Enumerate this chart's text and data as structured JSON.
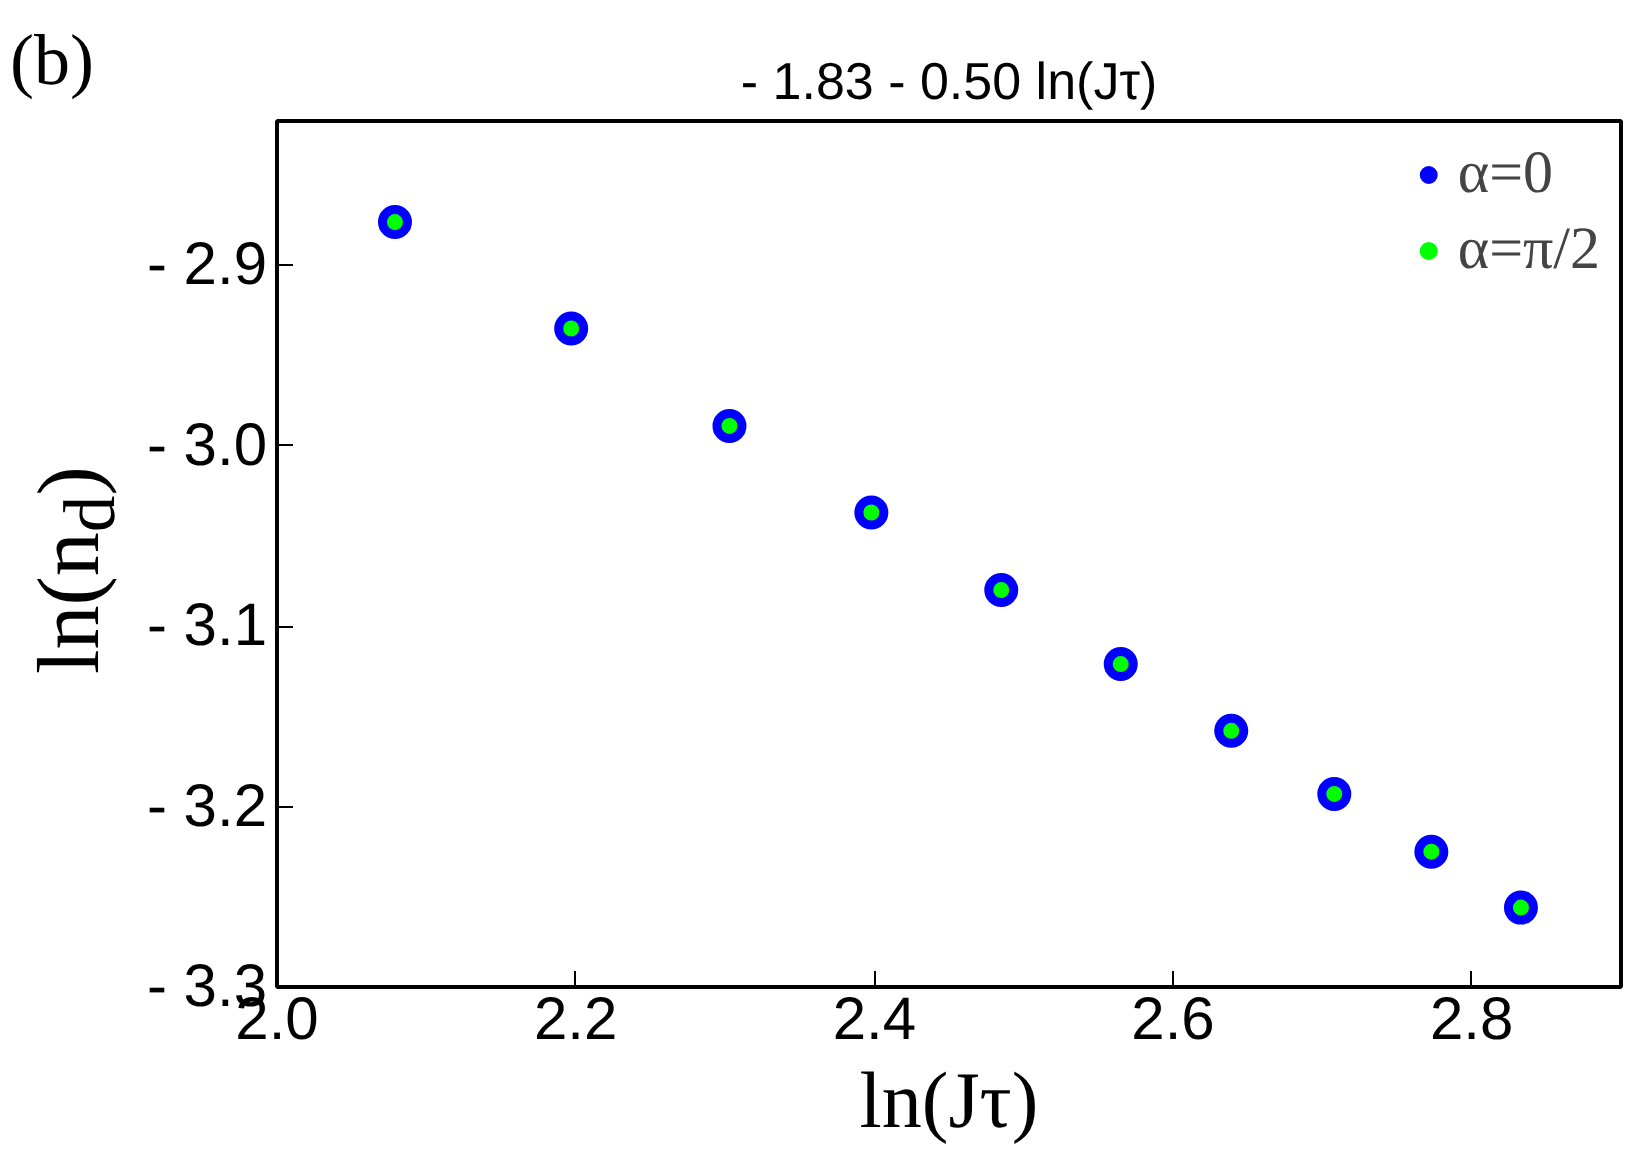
{
  "chart_data": {
    "type": "scatter",
    "title": "- 1.83 - 0.50 ln(Jτ)",
    "xlabel": "ln(Jτ)",
    "ylabel": "ln(n$_{d}$)",
    "annotations": [
      "(b)"
    ],
    "x": [
      2.079,
      2.197,
      2.303,
      2.398,
      2.485,
      2.565,
      2.639,
      2.708,
      2.773,
      2.833
    ],
    "series": [
      {
        "name": "α=0",
        "color": "#0000ff",
        "values": [
          -2.876,
          -2.935,
          -2.989,
          -3.037,
          -3.08,
          -3.121,
          -3.158,
          -3.193,
          -3.225,
          -3.256
        ]
      },
      {
        "name": "α=π/2",
        "color": "#00ff00",
        "values": [
          -2.876,
          -2.935,
          -2.989,
          -3.037,
          -3.08,
          -3.121,
          -3.158,
          -3.193,
          -3.225,
          -3.256
        ]
      }
    ],
    "xlim": [
      2.0,
      2.9
    ],
    "ylim": [
      -3.3,
      -2.82
    ],
    "xticks": [
      {
        "value": 2.0,
        "label": "2.0"
      },
      2.2,
      2.4,
      2.6,
      2.8
    ],
    "yticks": [
      {
        "value": -2.9,
        "label": "- 2.9"
      },
      {
        "value": -3.0,
        "label": "- 3.0"
      },
      {
        "value": -3.1,
        "label": "- 3.1"
      },
      {
        "value": -3.2,
        "label": "- 3.2"
      },
      {
        "value": -3.3,
        "label": "- 3.3"
      }
    ],
    "grid": false,
    "legend": "top right",
    "marker": "circle"
  }
}
